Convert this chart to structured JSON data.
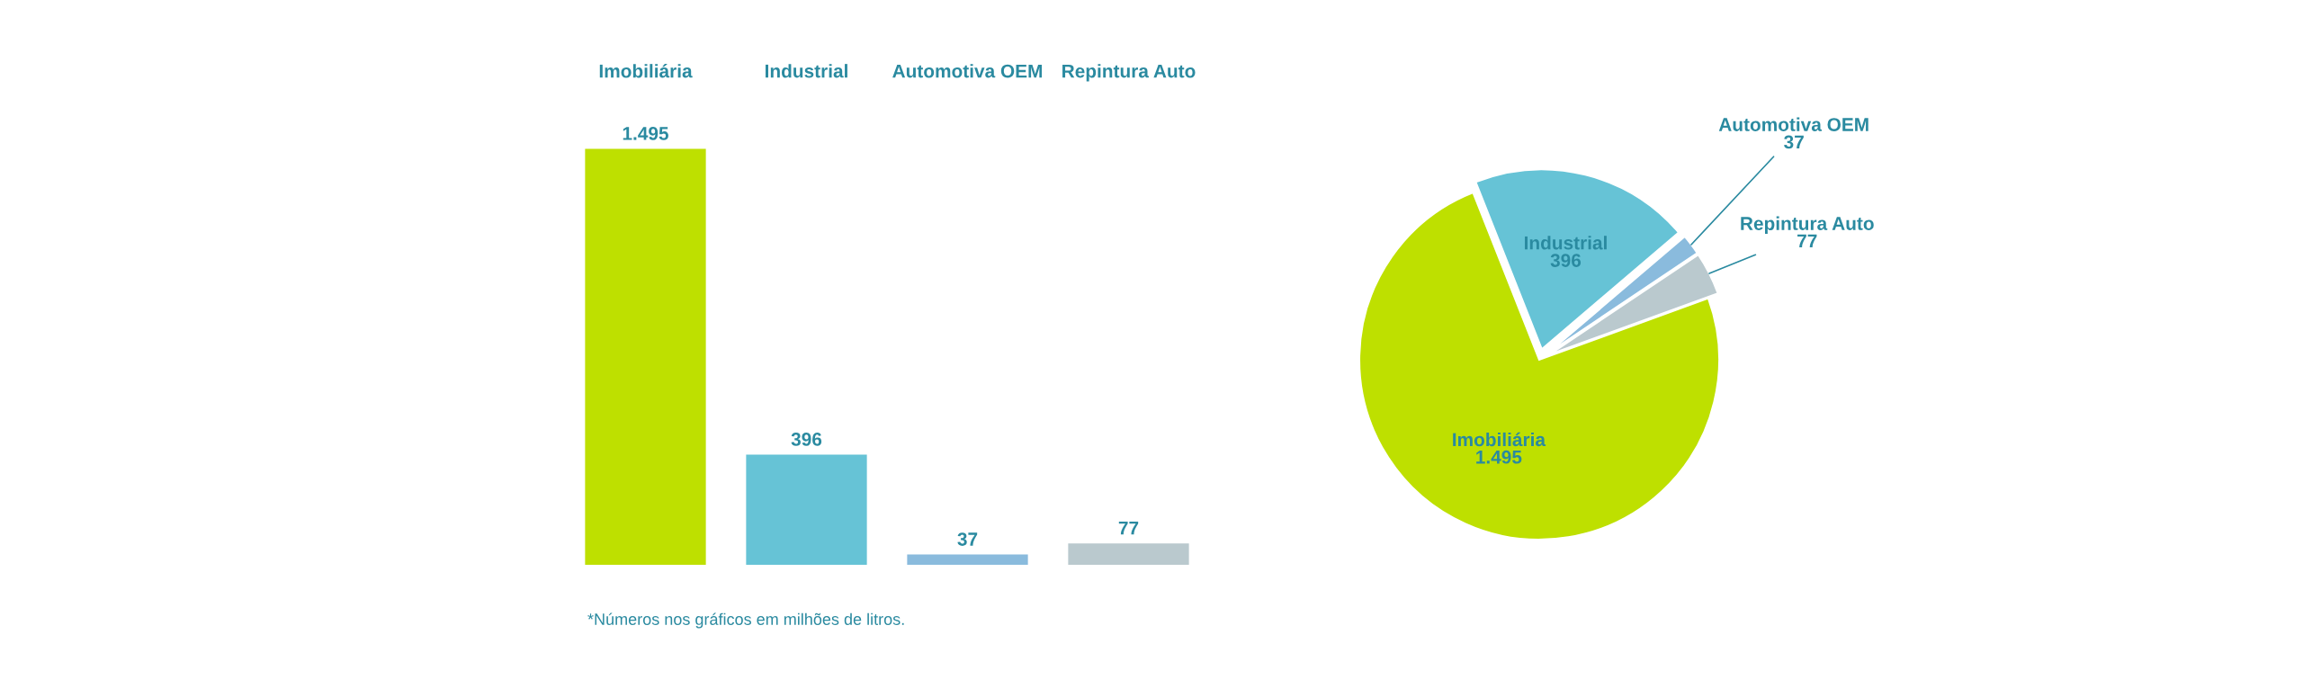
{
  "chart_data": [
    {
      "type": "bar",
      "categories": [
        "Imobiliária",
        "Industrial",
        "Automotiva OEM",
        "Repintura Auto"
      ],
      "values": [
        1495,
        396,
        37,
        77
      ],
      "colors": [
        "#bee000",
        "#66c3d6",
        "#8abbdd",
        "#bac9ce"
      ],
      "value_labels": [
        "1.495",
        "396",
        "37",
        "77"
      ],
      "annotations": [
        "*Números nos gráficos em milhões de litros."
      ]
    },
    {
      "type": "pie",
      "categories": [
        "Imobiliária",
        "Industrial",
        "Automotiva OEM",
        "Repintura Auto"
      ],
      "values": [
        1495,
        396,
        37,
        77
      ],
      "colors": [
        "#bee000",
        "#66c3d6",
        "#8abbdd",
        "#bac9ce"
      ],
      "value_labels": [
        "1.495",
        "396",
        "37",
        "77"
      ]
    }
  ]
}
